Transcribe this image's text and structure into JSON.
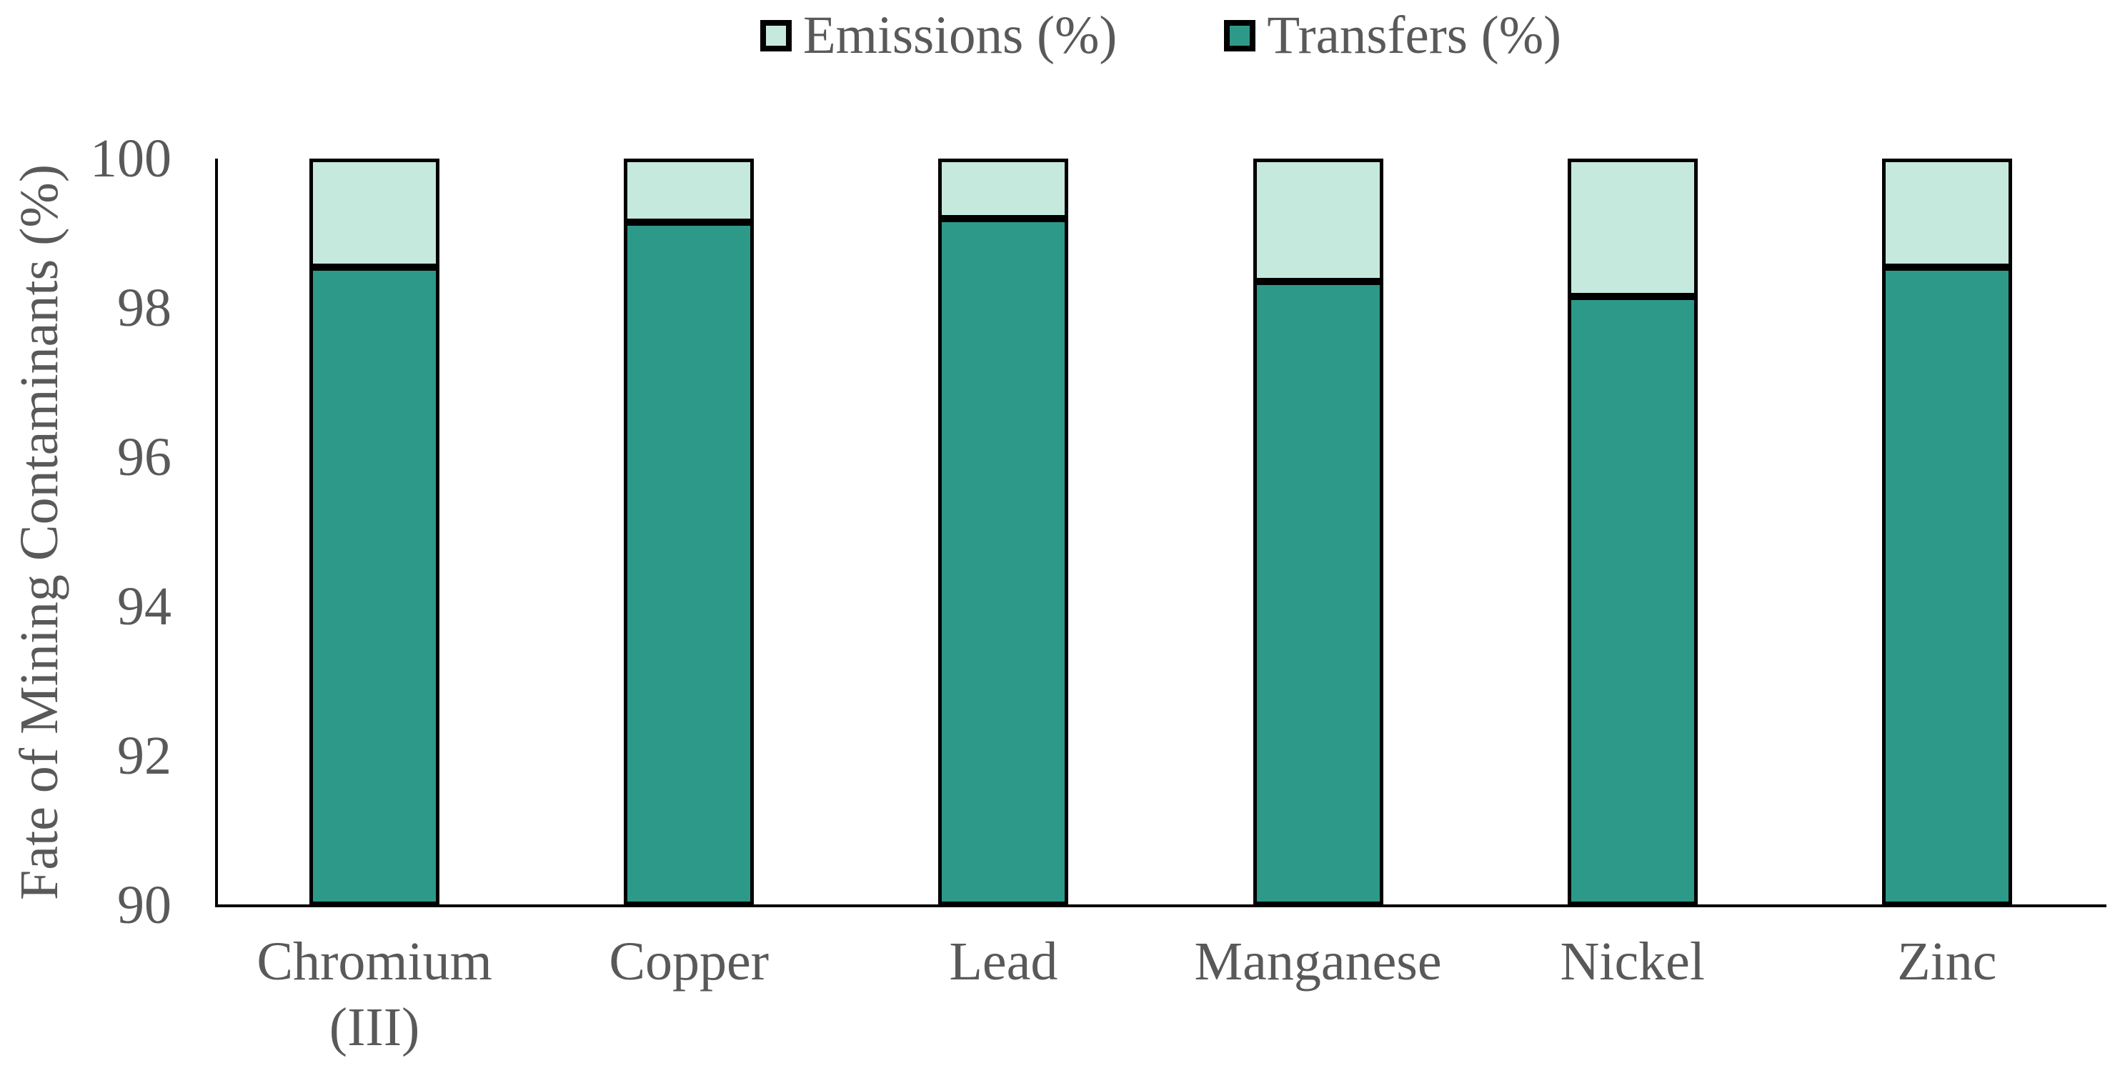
{
  "legend": {
    "items": [
      {
        "label": "Emissions (%)",
        "color": "#c6e9dd"
      },
      {
        "label": "Transfers (%)",
        "color": "#2d9989"
      }
    ]
  },
  "colors": {
    "emissions_fill": "#c6e9dd",
    "transfers_fill": "#2d9989",
    "bar_border": "#000000",
    "axis_line": "#000000",
    "text": "#595959",
    "background": "#ffffff"
  },
  "x_axis": {
    "category_lines": [
      [
        "Chromium",
        "(III)"
      ],
      [
        "Copper"
      ],
      [
        "Lead"
      ],
      [
        "Manganese"
      ],
      [
        "Nickel"
      ],
      [
        "Zinc"
      ]
    ]
  },
  "chart_data": {
    "type": "bar",
    "stacked": true,
    "title": "",
    "xlabel": "",
    "ylabel": "Fate of Mining Contaminants (%)",
    "categories": [
      "Chromium (III)",
      "Copper",
      "Lead",
      "Manganese",
      "Nickel",
      "Zinc"
    ],
    "series": [
      {
        "name": "Transfers (%)",
        "color": "#2d9989",
        "values": [
          98.55,
          99.15,
          99.2,
          98.35,
          98.15,
          98.55
        ]
      },
      {
        "name": "Emissions (%)",
        "color": "#c6e9dd",
        "values": [
          1.45,
          0.85,
          0.8,
          1.65,
          1.85,
          1.45
        ]
      }
    ],
    "ylim": [
      90,
      100
    ],
    "yticks": [
      100,
      98,
      96,
      94,
      92,
      90
    ],
    "grid": false,
    "legend_position": "top",
    "legend_entries": [
      "Emissions (%)",
      "Transfers (%)"
    ]
  }
}
